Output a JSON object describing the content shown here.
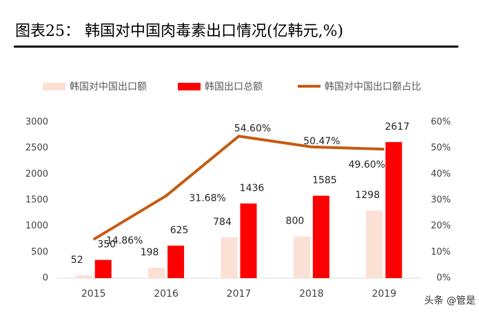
{
  "chart_data": {
    "type": "bar",
    "title": "图表25：  韩国对中国肉毒素出口情况(亿韩元,%)",
    "categories": [
      "2015",
      "2016",
      "2017",
      "2018",
      "2019"
    ],
    "series": [
      {
        "name": "韩国对中国出口额",
        "color": "#fbe0d4",
        "values": [
          52,
          198,
          784,
          800,
          1298
        ]
      },
      {
        "name": "韩国出口总额",
        "color": "#ff0000",
        "values": [
          350,
          625,
          1436,
          1585,
          2617
        ]
      },
      {
        "name": "韩国对中国出口额占比",
        "type": "line",
        "axis": "y2",
        "color": "#c55a11",
        "values": [
          14.86,
          31.68,
          54.6,
          50.47,
          49.6
        ],
        "value_labels": [
          "14.86%",
          "31.68%",
          "54.60%",
          "50.47%",
          "49.60%"
        ]
      }
    ],
    "ylim": [
      0,
      3000
    ],
    "yticks": [
      0,
      500,
      1000,
      1500,
      2000,
      2500,
      3000
    ],
    "y2lim": [
      0,
      60
    ],
    "y2ticks": [
      {
        "value": 0,
        "label": "0%"
      },
      {
        "value": 10,
        "label": "10%"
      },
      {
        "value": 20,
        "label": "20%"
      },
      {
        "value": 30,
        "label": "30%"
      },
      {
        "value": 40,
        "label": "40%"
      },
      {
        "value": 50,
        "label": "50%"
      },
      {
        "value": 60,
        "label": "60%"
      }
    ],
    "watermark": "头条 @管是"
  }
}
